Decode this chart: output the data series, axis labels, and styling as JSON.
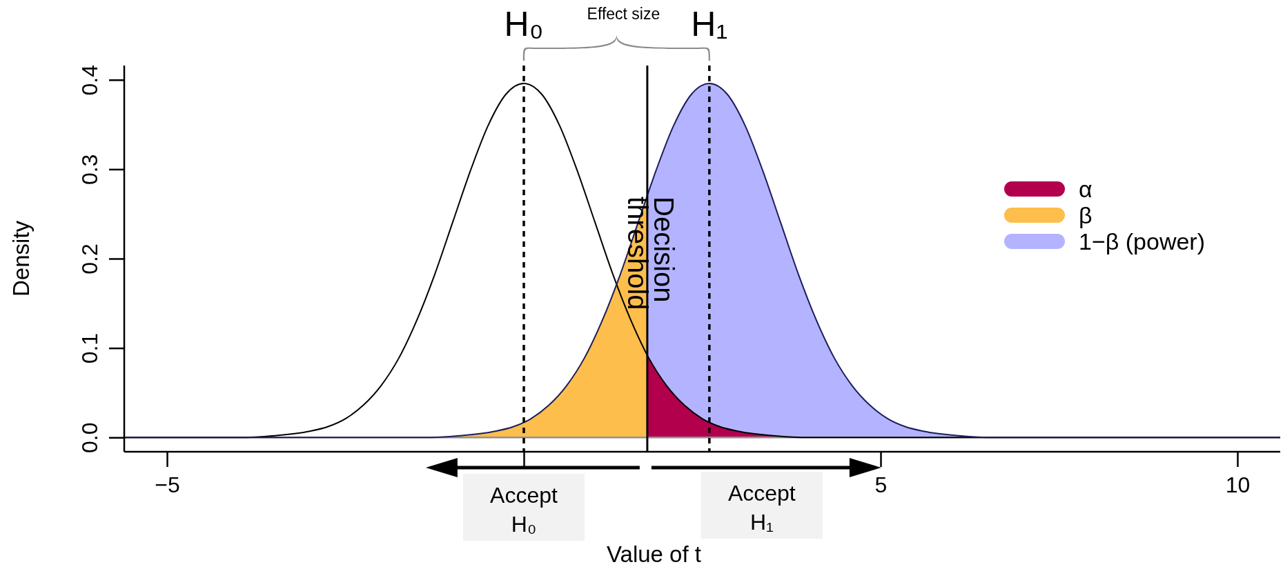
{
  "chart_data": {
    "type": "area",
    "xlabel": "Value of t",
    "ylabel": "Density",
    "xlim": [
      -5.6,
      10.6
    ],
    "ylim": [
      -0.016,
      0.416
    ],
    "xticks": [
      {
        "value": -5,
        "label": "−5"
      },
      {
        "value": 0,
        "label": null
      },
      5,
      10
    ],
    "yticks": [
      {
        "value": 0,
        "label": "0.0"
      },
      0.1,
      0.2,
      0.3,
      0.4
    ],
    "legend": "right",
    "series": [
      {
        "name": "α",
        "type": "area",
        "color": "#b2004d",
        "x": [
          1.73,
          2,
          2.25,
          2.5,
          2.75,
          3,
          3.5,
          4,
          10.6
        ],
        "values": [
          0.091,
          0.058,
          0.036,
          0.021,
          0.012,
          0.007,
          0.002,
          0,
          0
        ]
      },
      {
        "name": "β",
        "type": "area",
        "color": "#fdbe4c",
        "x": [
          -5.6,
          -1.4,
          -0.9,
          -0.4,
          -0.15,
          0.1,
          0.35,
          0.6,
          0.85,
          1.1,
          1.35,
          1.6,
          1.73
        ],
        "values": [
          0,
          0,
          0.002,
          0.007,
          0.012,
          0.021,
          0.036,
          0.058,
          0.089,
          0.131,
          0.182,
          0.24,
          0.272
        ]
      },
      {
        "name": "1−β (power)",
        "type": "area",
        "color": "#b3b3ff",
        "x": [
          1.73,
          1.85,
          2.1,
          2.35,
          2.6,
          2.85,
          3.1,
          3.35,
          3.6,
          3.85,
          4.1,
          4.35,
          4.6,
          4.85,
          5.1,
          5.35,
          5.6,
          6.1,
          6.6,
          10.6
        ],
        "values": [
          0.272,
          0.298,
          0.349,
          0.384,
          0.396,
          0.384,
          0.349,
          0.298,
          0.24,
          0.182,
          0.131,
          0.089,
          0.058,
          0.036,
          0.021,
          0.012,
          0.007,
          0.002,
          0,
          0
        ]
      },
      {
        "type": "line",
        "color": "#000000",
        "x": [
          -5.6,
          -4,
          -3.5,
          -3,
          -2.75,
          -2.5,
          -2.25,
          -2,
          -1.75,
          -1.5,
          -1.25,
          -1,
          -0.75,
          -0.5,
          -0.25,
          0,
          0.25,
          0.5,
          0.75,
          1,
          1.25,
          1.5,
          1.75,
          2,
          2.25,
          2.5,
          2.75,
          3,
          3.5,
          4,
          10.6
        ],
        "values": [
          0,
          0,
          0.002,
          0.007,
          0.012,
          0.021,
          0.036,
          0.058,
          0.089,
          0.131,
          0.182,
          0.24,
          0.298,
          0.349,
          0.384,
          0.396,
          0.384,
          0.349,
          0.298,
          0.24,
          0.182,
          0.131,
          0.089,
          0.058,
          0.036,
          0.021,
          0.012,
          0.007,
          0.002,
          0,
          0
        ]
      },
      {
        "type": "line",
        "color": "#1c1c5c",
        "x": [
          -5.6,
          -1.4,
          -0.9,
          -0.4,
          -0.15,
          0.1,
          0.35,
          0.6,
          0.85,
          1.1,
          1.35,
          1.6,
          1.85,
          2.1,
          2.35,
          2.6,
          2.85,
          3.1,
          3.35,
          3.6,
          3.85,
          4.1,
          4.35,
          4.6,
          4.85,
          5.1,
          5.35,
          5.6,
          6.1,
          6.6,
          10.6
        ],
        "values": [
          0,
          0,
          0.002,
          0.007,
          0.012,
          0.021,
          0.036,
          0.058,
          0.089,
          0.131,
          0.182,
          0.24,
          0.298,
          0.349,
          0.384,
          0.396,
          0.384,
          0.349,
          0.298,
          0.24,
          0.182,
          0.131,
          0.089,
          0.058,
          0.036,
          0.021,
          0.012,
          0.007,
          0.002,
          0,
          0
        ]
      }
    ],
    "ref_lines": [
      {
        "axis": "y",
        "value": 0,
        "color": "#909090",
        "line_style": "solid"
      },
      {
        "axis": "x",
        "value": 0,
        "label": "H₀",
        "line_style": "dashed",
        "color": "#000000"
      },
      {
        "axis": "x",
        "value": 2.6,
        "label": "H₁",
        "line_style": "dashed",
        "color": "#000000"
      },
      {
        "axis": "x",
        "value": 1.73,
        "label": "Decision threshold",
        "line_style": "solid",
        "color": "#000000"
      }
    ],
    "annotations": [
      "Effect size",
      "Accept H₀",
      "Accept H₁"
    ]
  }
}
